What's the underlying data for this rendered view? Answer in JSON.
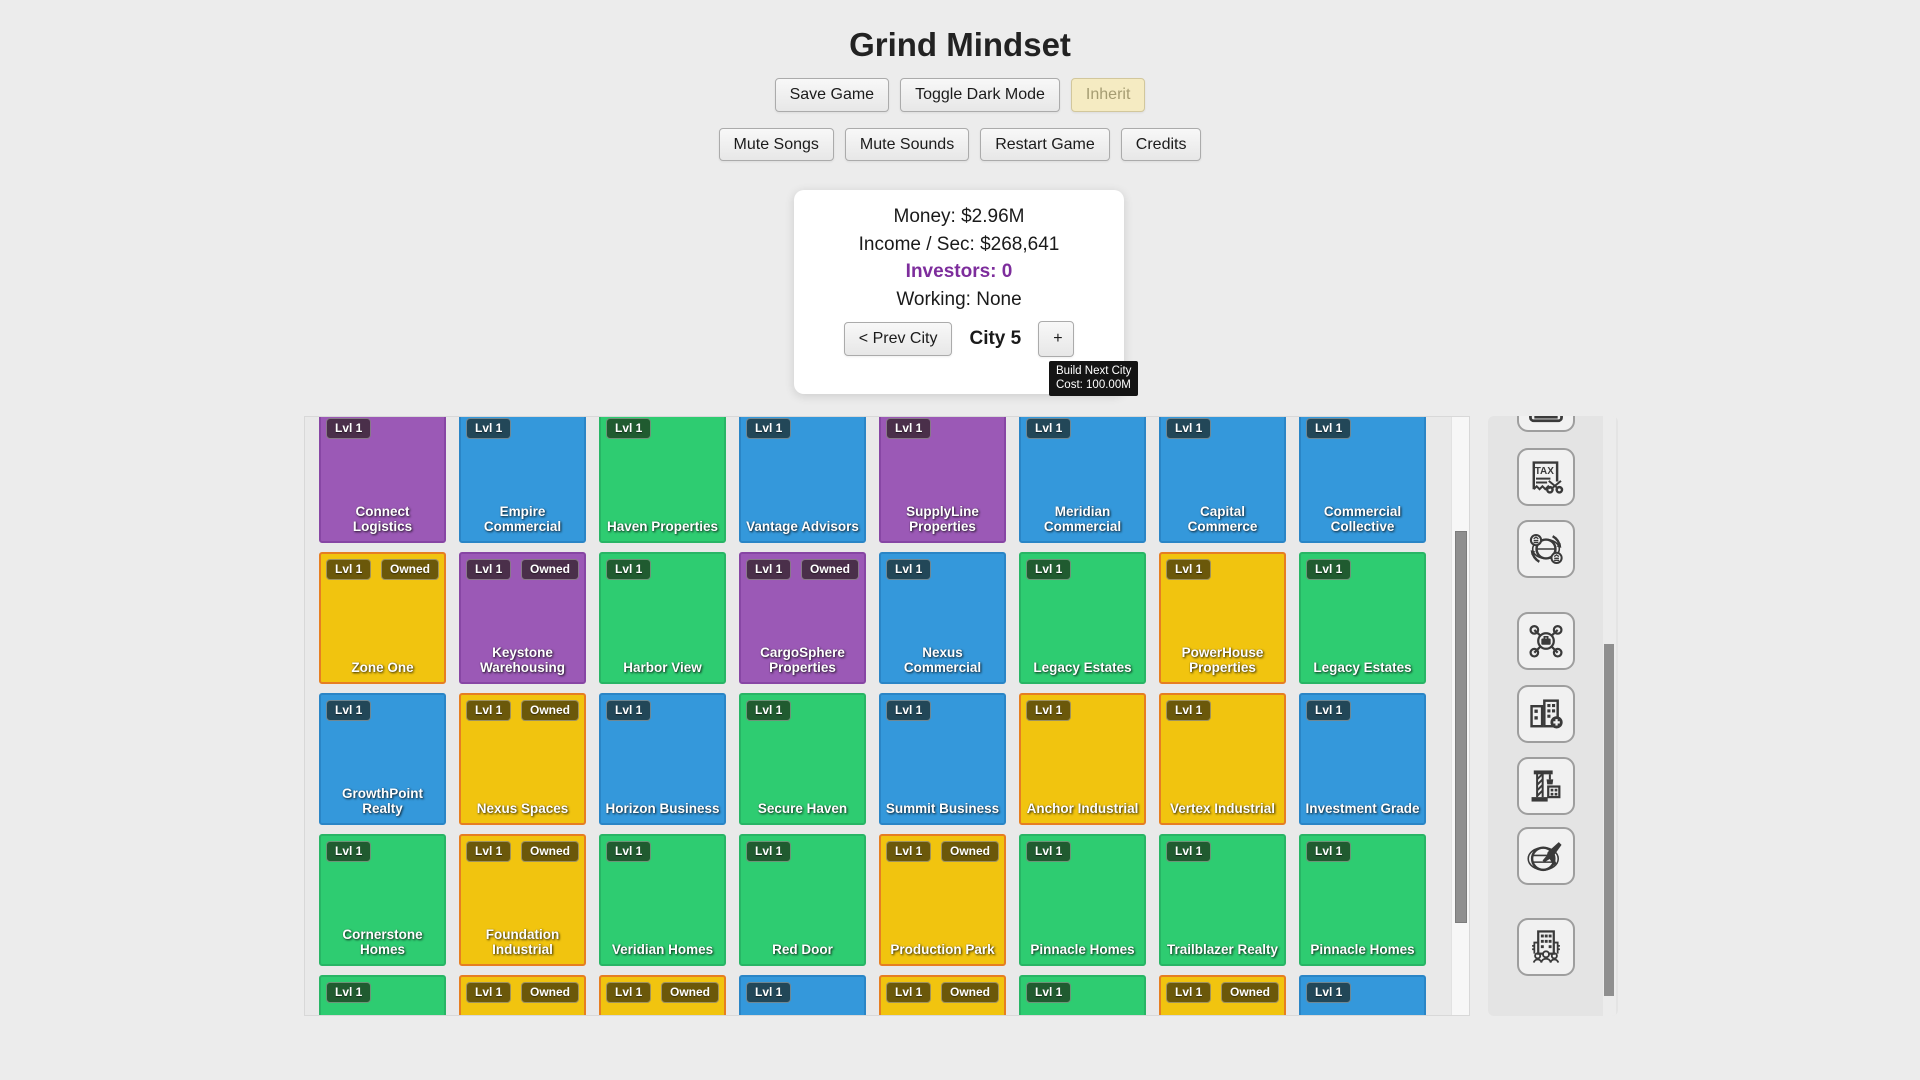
{
  "page": {
    "title": "Grind Mindset"
  },
  "toolbar": {
    "row1": [
      {
        "label": "Save Game"
      },
      {
        "label": "Toggle Dark Mode"
      },
      {
        "label": "Inherit"
      }
    ],
    "row2": [
      {
        "label": "Mute Songs"
      },
      {
        "label": "Mute Sounds"
      },
      {
        "label": "Restart Game"
      },
      {
        "label": "Credits"
      }
    ]
  },
  "stats": {
    "money": "Money: $2.96M",
    "income": "Income / Sec: $268,641",
    "investors": "Investors: 0",
    "working": "Working: None"
  },
  "city_nav": {
    "prev_label": "< Prev City",
    "city_label": "City 5",
    "next_label": "+",
    "tooltip": {
      "line1": "Build Next City",
      "line2": "Cost: 100.00M"
    }
  },
  "colors": {
    "tile_blue": "#3498db",
    "tile_green": "#2ecc71",
    "tile_yellow": "#f1c40f",
    "tile_purple": "#9b59b6",
    "tile_yellow_border": "#e67e22",
    "investors_text": "#7d2d9c",
    "inherit_bg": "#f5ebc2",
    "tooltip_bg": "#141414"
  },
  "grid": {
    "owned_label": "Owned",
    "tiles": [
      {
        "name": "Connect\nLogistics",
        "color": "purple",
        "level": "Lvl 1",
        "owned": false
      },
      {
        "name": "Empire\nCommercial",
        "color": "blue",
        "level": "Lvl 1",
        "owned": false
      },
      {
        "name": "Haven Properties",
        "color": "green",
        "level": "Lvl 1",
        "owned": false
      },
      {
        "name": "Vantage Advisors",
        "color": "blue",
        "level": "Lvl 1",
        "owned": false
      },
      {
        "name": "SupplyLine\nProperties",
        "color": "purple",
        "level": "Lvl 1",
        "owned": false
      },
      {
        "name": "Meridian\nCommercial",
        "color": "blue",
        "level": "Lvl 1",
        "owned": false
      },
      {
        "name": "Capital\nCommerce",
        "color": "blue",
        "level": "Lvl 1",
        "owned": false
      },
      {
        "name": "Commercial\nCollective",
        "color": "blue",
        "level": "Lvl 1",
        "owned": false
      },
      {
        "name": "Zone One",
        "color": "yellow",
        "level": "Lvl 1",
        "owned": true
      },
      {
        "name": "Keystone\nWarehousing",
        "color": "purple",
        "level": "Lvl 1",
        "owned": true
      },
      {
        "name": "Harbor View",
        "color": "green",
        "level": "Lvl 1",
        "owned": false
      },
      {
        "name": "CargoSphere\nProperties",
        "color": "purple",
        "level": "Lvl 1",
        "owned": true
      },
      {
        "name": "Nexus\nCommercial",
        "color": "blue",
        "level": "Lvl 1",
        "owned": false
      },
      {
        "name": "Legacy Estates",
        "color": "green",
        "level": "Lvl 1",
        "owned": false
      },
      {
        "name": "PowerHouse\nProperties",
        "color": "yellow",
        "level": "Lvl 1",
        "owned": false
      },
      {
        "name": "Legacy Estates",
        "color": "green",
        "level": "Lvl 1",
        "owned": false
      },
      {
        "name": "GrowthPoint\nRealty",
        "color": "blue",
        "level": "Lvl 1",
        "owned": false
      },
      {
        "name": "Nexus Spaces",
        "color": "yellow",
        "level": "Lvl 1",
        "owned": true
      },
      {
        "name": "Horizon Business",
        "color": "blue",
        "level": "Lvl 1",
        "owned": false
      },
      {
        "name": "Secure Haven",
        "color": "green",
        "level": "Lvl 1",
        "owned": false
      },
      {
        "name": "Summit Business",
        "color": "blue",
        "level": "Lvl 1",
        "owned": false
      },
      {
        "name": "Anchor Industrial",
        "color": "yellow",
        "level": "Lvl 1",
        "owned": false
      },
      {
        "name": "Vertex Industrial",
        "color": "yellow",
        "level": "Lvl 1",
        "owned": false
      },
      {
        "name": "Investment Grade",
        "color": "blue",
        "level": "Lvl 1",
        "owned": false
      },
      {
        "name": "Cornerstone\nHomes",
        "color": "green",
        "level": "Lvl 1",
        "owned": false
      },
      {
        "name": "Foundation\nIndustrial",
        "color": "yellow",
        "level": "Lvl 1",
        "owned": true
      },
      {
        "name": "Veridian Homes",
        "color": "green",
        "level": "Lvl 1",
        "owned": false
      },
      {
        "name": "Red Door",
        "color": "green",
        "level": "Lvl 1",
        "owned": false
      },
      {
        "name": "Production Park",
        "color": "yellow",
        "level": "Lvl 1",
        "owned": true
      },
      {
        "name": "Pinnacle Homes",
        "color": "green",
        "level": "Lvl 1",
        "owned": false
      },
      {
        "name": "Trailblazer Realty",
        "color": "green",
        "level": "Lvl 1",
        "owned": false
      },
      {
        "name": "Pinnacle Homes",
        "color": "green",
        "level": "Lvl 1",
        "owned": false
      },
      {
        "name": "",
        "color": "green",
        "level": "Lvl 1",
        "owned": false
      },
      {
        "name": "",
        "color": "yellow",
        "level": "Lvl 1",
        "owned": true
      },
      {
        "name": "",
        "color": "yellow",
        "level": "Lvl 1",
        "owned": true
      },
      {
        "name": "",
        "color": "blue",
        "level": "Lvl 1",
        "owned": false
      },
      {
        "name": "",
        "color": "yellow",
        "level": "Lvl 1",
        "owned": true
      },
      {
        "name": "",
        "color": "green",
        "level": "Lvl 1",
        "owned": false
      },
      {
        "name": "",
        "color": "yellow",
        "level": "Lvl 1",
        "owned": true
      },
      {
        "name": "",
        "color": "blue",
        "level": "Lvl 1",
        "owned": false
      }
    ]
  },
  "sidebar": {
    "icons": [
      {
        "name": "calculator-icon"
      },
      {
        "name": "tax-cut-icon"
      },
      {
        "name": "global-banking-icon"
      },
      {
        "name": "business-network-icon"
      },
      {
        "name": "add-property-icon"
      },
      {
        "name": "construction-icon"
      },
      {
        "name": "global-travel-icon"
      },
      {
        "name": "corporation-icon"
      }
    ]
  }
}
